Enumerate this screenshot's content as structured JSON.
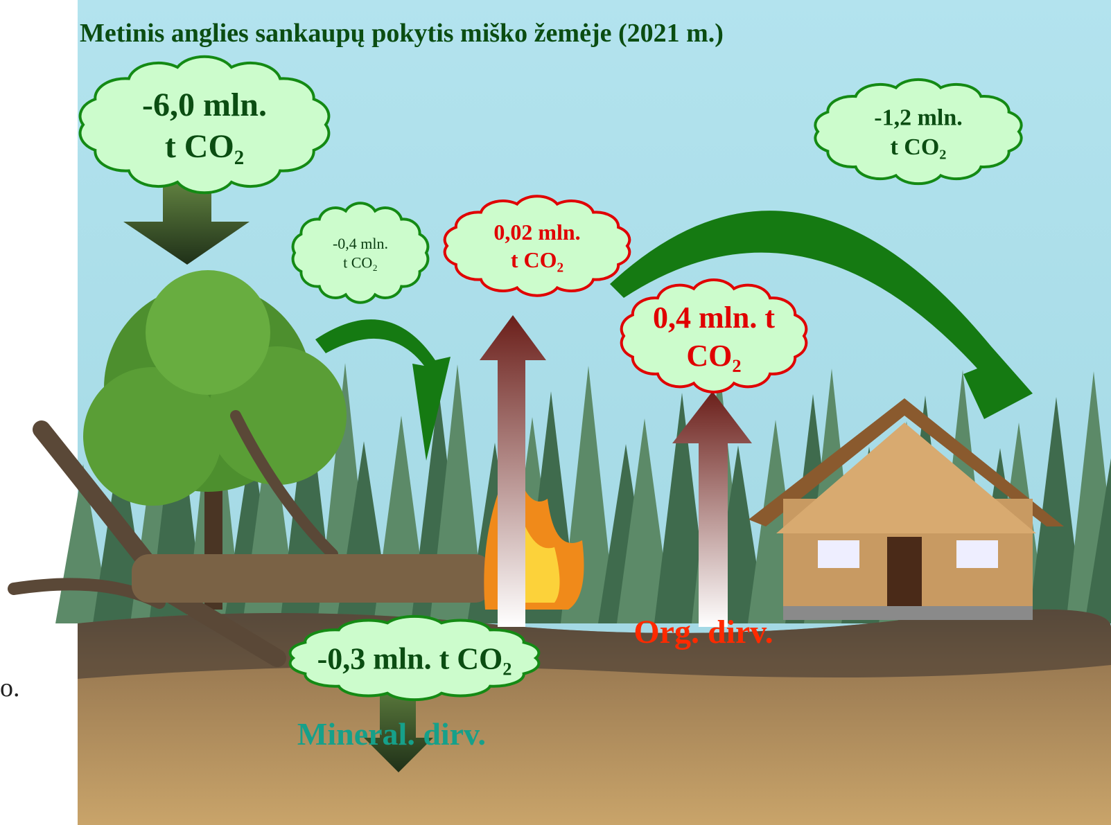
{
  "title": "Metinis anglies sankaupų pokytis miško žemėje (2021 m.)",
  "clouds": [
    {
      "lines": [
        "-6,0 mln.",
        "t CO₂"
      ]
    },
    {
      "lines": [
        "-1,2 mln.",
        "t CO₂"
      ]
    },
    {
      "lines": [
        "-0,4 mln.",
        "t CO₂"
      ]
    },
    {
      "lines": [
        "0,02 mln.",
        "t CO₂"
      ]
    },
    {
      "lines": [
        "0,4 mln. t",
        "CO₂"
      ]
    },
    {
      "lines": [
        "-0,3 mln. t CO₂"
      ]
    }
  ],
  "soil_labels": [
    "Org. dirv.",
    "Mineral. dirv."
  ],
  "side_text": "o."
}
